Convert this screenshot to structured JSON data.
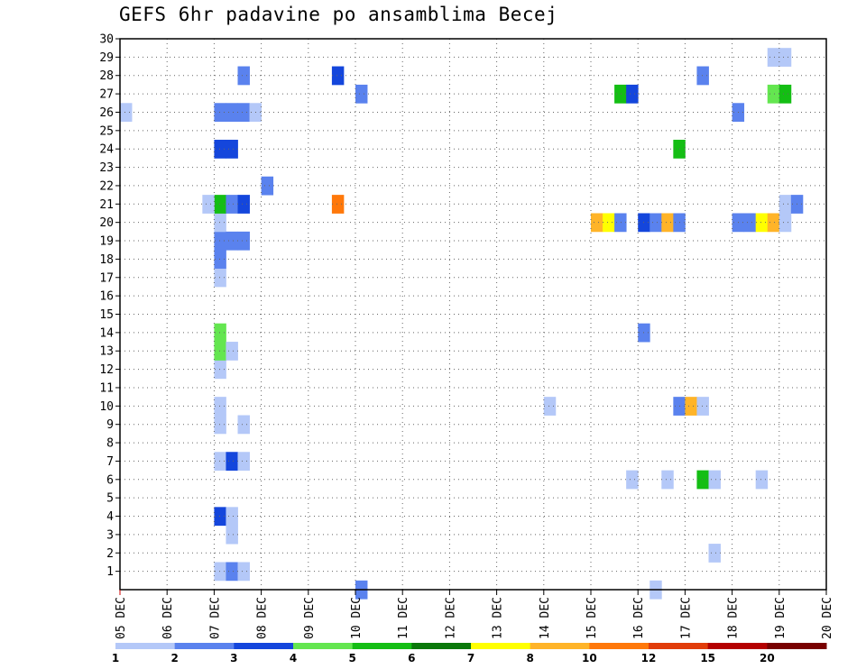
{
  "chart_data": {
    "type": "heatmap",
    "title": "GEFS 6hr padavine po ansamblima Becej",
    "x_tick_labels": [
      "05 DEC",
      "06 DEC",
      "07 DEC",
      "08 DEC",
      "09 DEC",
      "10 DEC",
      "11 DEC",
      "12 DEC",
      "13 DEC",
      "14 DEC",
      "15 DEC",
      "16 DEC",
      "17 DEC",
      "18 DEC",
      "19 DEC",
      "20 DEC"
    ],
    "y_tick_labels": [
      "1",
      "2",
      "3",
      "4",
      "5",
      "6",
      "7",
      "8",
      "9",
      "10",
      "11",
      "12",
      "13",
      "14",
      "15",
      "16",
      "17",
      "18",
      "19",
      "20",
      "21",
      "22",
      "23",
      "24",
      "25",
      "26",
      "27",
      "28",
      "29",
      "30"
    ],
    "xlim": [
      0,
      60
    ],
    "ylim": [
      0,
      30
    ],
    "grid": true,
    "colorbar": {
      "labels": [
        "1",
        "2",
        "3",
        "4",
        "5",
        "6",
        "7",
        "8",
        "10",
        "12",
        "15",
        "20"
      ],
      "colors": [
        "#b4c8f8",
        "#5a82ee",
        "#1446dc",
        "#64e650",
        "#14be14",
        "#0a780a",
        "#ffff00",
        "#ffb428",
        "#ff780a",
        "#e13c0a",
        "#b40000",
        "#780000"
      ]
    },
    "cells": [
      {
        "t": 0,
        "m": 26,
        "c": 0
      },
      {
        "t": 8,
        "m": 1,
        "c": 0
      },
      {
        "t": 8,
        "m": 7,
        "c": 0
      },
      {
        "t": 8,
        "m": 9,
        "c": 0
      },
      {
        "t": 8,
        "m": 10,
        "c": 0
      },
      {
        "t": 8,
        "m": 12,
        "c": 0
      },
      {
        "t": 8,
        "m": 13,
        "c": 3
      },
      {
        "t": 8,
        "m": 14,
        "c": 3
      },
      {
        "t": 8,
        "m": 17,
        "c": 0
      },
      {
        "t": 8,
        "m": 18,
        "c": 1
      },
      {
        "t": 8,
        "m": 19,
        "c": 1
      },
      {
        "t": 8,
        "m": 20,
        "c": 0
      },
      {
        "t": 8,
        "m": 21,
        "c": 4
      },
      {
        "t": 8,
        "m": 24,
        "c": 2
      },
      {
        "t": 8,
        "m": 26,
        "c": 1
      },
      {
        "t": 8,
        "m": 4,
        "c": 2
      },
      {
        "t": 7,
        "m": 21,
        "c": 0
      },
      {
        "t": 9,
        "m": 1,
        "c": 1
      },
      {
        "t": 9,
        "m": 3,
        "c": 0
      },
      {
        "t": 9,
        "m": 4,
        "c": 0
      },
      {
        "t": 9,
        "m": 7,
        "c": 2
      },
      {
        "t": 9,
        "m": 13,
        "c": 0
      },
      {
        "t": 9,
        "m": 19,
        "c": 1
      },
      {
        "t": 9,
        "m": 21,
        "c": 1
      },
      {
        "t": 9,
        "m": 24,
        "c": 2
      },
      {
        "t": 9,
        "m": 26,
        "c": 1
      },
      {
        "t": 10,
        "m": 1,
        "c": 0
      },
      {
        "t": 10,
        "m": 7,
        "c": 0
      },
      {
        "t": 10,
        "m": 9,
        "c": 0
      },
      {
        "t": 10,
        "m": 19,
        "c": 1
      },
      {
        "t": 10,
        "m": 21,
        "c": 2
      },
      {
        "t": 10,
        "m": 26,
        "c": 1
      },
      {
        "t": 10,
        "m": 28,
        "c": 1
      },
      {
        "t": 11,
        "m": 26,
        "c": 0
      },
      {
        "t": 12,
        "m": 22,
        "c": 1
      },
      {
        "t": 18,
        "m": 21,
        "c": 8
      },
      {
        "t": 18,
        "m": 28,
        "c": 2
      },
      {
        "t": 20,
        "m": 27,
        "c": 1
      },
      {
        "t": 20,
        "m": 0,
        "c": 1
      },
      {
        "t": 36,
        "m": 10,
        "c": 0
      },
      {
        "t": 40,
        "m": 20,
        "c": 7
      },
      {
        "t": 41,
        "m": 20,
        "c": 6
      },
      {
        "t": 42,
        "m": 20,
        "c": 1
      },
      {
        "t": 42,
        "m": 27,
        "c": 4
      },
      {
        "t": 43,
        "m": 27,
        "c": 2
      },
      {
        "t": 43,
        "m": 6,
        "c": 0
      },
      {
        "t": 44,
        "m": 20,
        "c": 2
      },
      {
        "t": 44,
        "m": 14,
        "c": 1
      },
      {
        "t": 45,
        "m": 20,
        "c": 1
      },
      {
        "t": 45,
        "m": 0,
        "c": 0
      },
      {
        "t": 46,
        "m": 20,
        "c": 7
      },
      {
        "t": 46,
        "m": 6,
        "c": 0
      },
      {
        "t": 47,
        "m": 20,
        "c": 1
      },
      {
        "t": 47,
        "m": 24,
        "c": 4
      },
      {
        "t": 47,
        "m": 10,
        "c": 1
      },
      {
        "t": 48,
        "m": 10,
        "c": 7
      },
      {
        "t": 49,
        "m": 10,
        "c": 0
      },
      {
        "t": 49,
        "m": 28,
        "c": 1
      },
      {
        "t": 49,
        "m": 6,
        "c": 4
      },
      {
        "t": 50,
        "m": 6,
        "c": 0
      },
      {
        "t": 50,
        "m": 2,
        "c": 0
      },
      {
        "t": 52,
        "m": 26,
        "c": 1
      },
      {
        "t": 52,
        "m": 20,
        "c": 1
      },
      {
        "t": 53,
        "m": 20,
        "c": 1
      },
      {
        "t": 54,
        "m": 20,
        "c": 6
      },
      {
        "t": 54,
        "m": 6,
        "c": 0
      },
      {
        "t": 55,
        "m": 20,
        "c": 7
      },
      {
        "t": 55,
        "m": 27,
        "c": 3
      },
      {
        "t": 56,
        "m": 20,
        "c": 0
      },
      {
        "t": 56,
        "m": 21,
        "c": 0
      },
      {
        "t": 56,
        "m": 27,
        "c": 4
      },
      {
        "t": 57,
        "m": 21,
        "c": 1
      },
      {
        "t": 55,
        "m": 29,
        "c": 0
      },
      {
        "t": 56,
        "m": 29,
        "c": 0
      }
    ]
  }
}
